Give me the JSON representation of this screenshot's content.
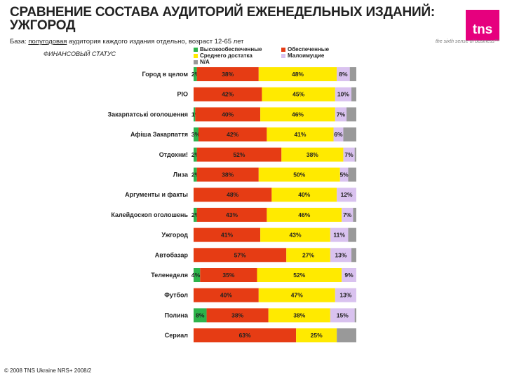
{
  "title": "СРАВНЕНИЕ СОСТАВА АУДИТОРИЙ ЕЖЕНЕДЕЛЬНЫХ ИЗДАНИЙ: УЖГОРОД",
  "base_prefix": "База:",
  "base_underlined": "полугодовая",
  "base_rest": "аудитория каждого издания отдельно, возраст 12-65 лет",
  "logo": "tns",
  "tagline": "the sixth sense of business™",
  "section_label": "ФИНАНСОВЫЙ СТАТУС",
  "footer": "© 2008 TNS Ukraine NRS+ 2008/2",
  "colors": {
    "high": "#2db34a",
    "secured": "#e63c14",
    "middle": "#ffea00",
    "low": "#d9c2ef",
    "na": "#999999"
  },
  "chart_data": {
    "type": "bar",
    "orientation": "horizontal",
    "stacked": true,
    "xlim": [
      0,
      100
    ],
    "categories": [
      "Город в целом",
      "PIO",
      "Закарпатські оголошення",
      "Афіша Закарпаття",
      "Отдохни!",
      "Лиза",
      "Аргументы и факты",
      "Калейдоскоп оголошень",
      "Ужгород",
      "Автобазар",
      "Теленеделя",
      "Футбол",
      "Полина",
      "Сериал"
    ],
    "series": [
      {
        "name": "Высокообеспеченные",
        "color_key": "high",
        "values": [
          2,
          0,
          1,
          3,
          2,
          2,
          0,
          2,
          0,
          0,
          4,
          0,
          8,
          0
        ],
        "labels": [
          "2%",
          "",
          "1%",
          "3%",
          "2%",
          "2%",
          "",
          "2%",
          "",
          "",
          "4%",
          "",
          "8%",
          ""
        ]
      },
      {
        "name": "Обеспеченные",
        "color_key": "secured",
        "values": [
          38,
          42,
          40,
          42,
          52,
          38,
          48,
          43,
          41,
          57,
          35,
          40,
          38,
          63
        ],
        "labels": [
          "38%",
          "42%",
          "40%",
          "42%",
          "52%",
          "38%",
          "48%",
          "43%",
          "41%",
          "57%",
          "35%",
          "40%",
          "38%",
          "63%"
        ]
      },
      {
        "name": "Среднего достатка",
        "color_key": "middle",
        "values": [
          48,
          45,
          46,
          41,
          38,
          50,
          40,
          46,
          43,
          27,
          52,
          47,
          38,
          25
        ],
        "labels": [
          "48%",
          "45%",
          "46%",
          "41%",
          "38%",
          "50%",
          "40%",
          "46%",
          "43%",
          "27%",
          "52%",
          "47%",
          "38%",
          "25%"
        ]
      },
      {
        "name": "Малоимущие",
        "color_key": "low",
        "values": [
          8,
          10,
          7,
          6,
          7,
          5,
          12,
          7,
          11,
          13,
          9,
          13,
          15,
          0
        ],
        "labels": [
          "8%",
          "10%",
          "7%",
          "6%",
          "7%",
          "5%",
          "12%",
          "7%",
          "11%",
          "13%",
          "9%",
          "13%",
          "15%",
          ""
        ]
      },
      {
        "name": "N/A",
        "color_key": "na",
        "values": [
          4,
          3,
          6,
          8,
          1,
          5,
          0,
          2,
          5,
          3,
          0,
          0,
          1,
          12
        ],
        "labels": [
          "",
          "",
          "",
          "",
          "",
          "",
          "",
          "",
          "",
          "",
          "",
          "",
          "",
          ""
        ]
      }
    ]
  }
}
